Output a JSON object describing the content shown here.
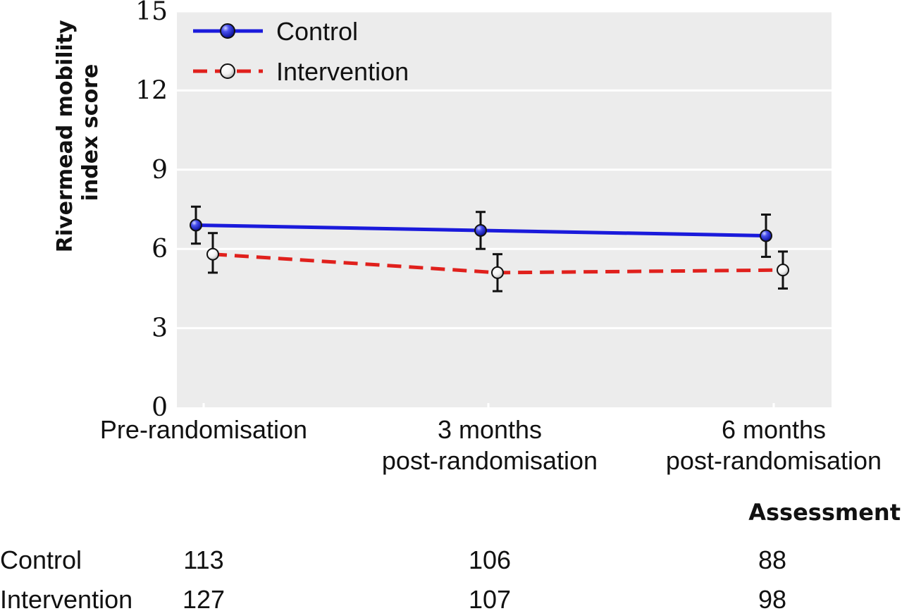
{
  "colors": {
    "control": "#1a1adb",
    "intervention": "#e0201c",
    "plot_bg": "#ececec",
    "grid": "#ffffff"
  },
  "chart_data": {
    "type": "line",
    "ylabel_line1": "Rivermead mobility",
    "ylabel_line2": "index score",
    "xlabel": "Assessment",
    "ylim": [
      0,
      15
    ],
    "yticks": [
      0,
      3,
      6,
      9,
      12,
      15
    ],
    "categories": [
      [
        "Pre-randomisation"
      ],
      [
        "3 months",
        "post-randomisation"
      ],
      [
        "6 months",
        "post-randomisation"
      ]
    ],
    "legend_position": "top-left",
    "series": [
      {
        "name": "Control",
        "values": [
          6.9,
          6.7,
          6.5
        ],
        "ci_low": [
          6.2,
          6.0,
          5.7
        ],
        "ci_high": [
          7.6,
          7.4,
          7.3
        ],
        "line_style": "solid",
        "marker": "filled-blue"
      },
      {
        "name": "Intervention",
        "values": [
          5.8,
          5.1,
          5.2
        ],
        "ci_low": [
          5.1,
          4.4,
          4.5
        ],
        "ci_high": [
          6.6,
          5.8,
          5.9
        ],
        "line_style": "dashed",
        "marker": "open-white"
      }
    ],
    "sample_sizes": {
      "rows": [
        {
          "label": "Control",
          "values": [
            "113",
            "106",
            "88"
          ]
        },
        {
          "label": "Intervention",
          "values": [
            "127",
            "107",
            "98"
          ]
        }
      ]
    }
  }
}
